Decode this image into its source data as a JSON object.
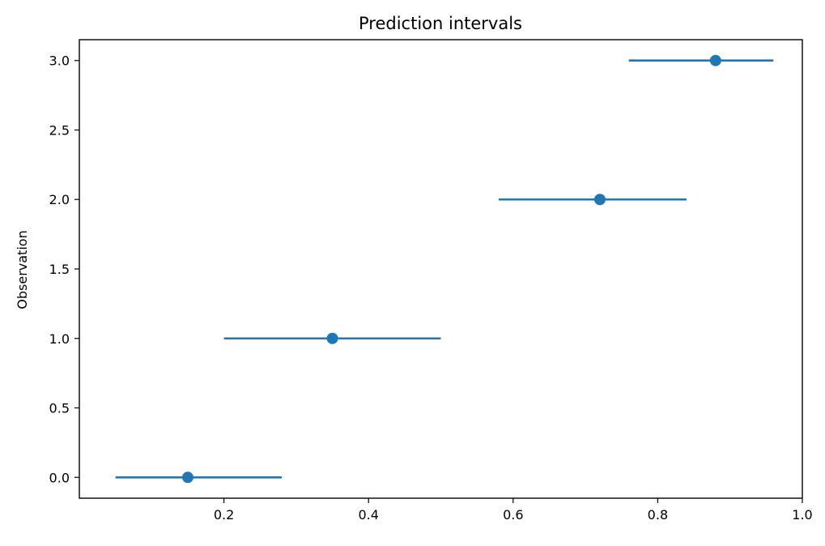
{
  "chart_data": {
    "type": "scatter",
    "title": "Prediction intervals",
    "xlabel": "",
    "ylabel": "Observation",
    "xlim": [
      0.0,
      1.0
    ],
    "ylim": [
      -0.15,
      3.15
    ],
    "x_ticks": [
      0.2,
      0.4,
      0.6,
      0.8,
      1.0
    ],
    "x_tick_labels": [
      "0.2",
      "0.4",
      "0.6",
      "0.8",
      "1.0"
    ],
    "y_ticks": [
      0.0,
      0.5,
      1.0,
      1.5,
      2.0,
      2.5,
      3.0
    ],
    "y_tick_labels": [
      "0.0",
      "0.5",
      "1.0",
      "1.5",
      "2.0",
      "2.5",
      "3.0"
    ],
    "grid": false,
    "series": [
      {
        "points": [
          {
            "y": 0,
            "x": 0.15,
            "lower": 0.05,
            "upper": 0.28
          },
          {
            "y": 1,
            "x": 0.35,
            "lower": 0.2,
            "upper": 0.5
          },
          {
            "y": 2,
            "x": 0.72,
            "lower": 0.58,
            "upper": 0.84
          },
          {
            "y": 3,
            "x": 0.88,
            "lower": 0.76,
            "upper": 0.96
          }
        ],
        "color": "#1f77b4"
      }
    ]
  }
}
